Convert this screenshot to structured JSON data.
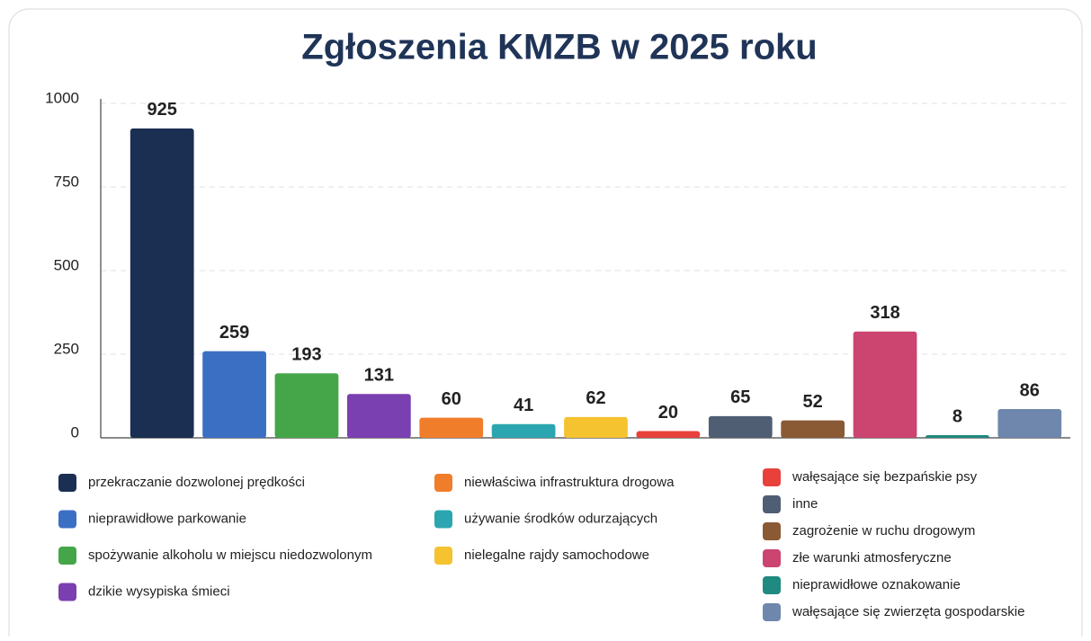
{
  "chart_data": {
    "type": "bar",
    "title": "Zgłoszenia KMZB w 2025 roku",
    "categories": [
      "przekraczanie dozwolonej prędkości",
      "nieprawidłowe parkowanie",
      "spożywanie alkoholu w miejscu niedozwolonym",
      "dzikie wysypiska śmieci",
      "niewłaściwa infrastruktura drogowa",
      "używanie środków odurzających",
      "nielegalne rajdy samochodowe",
      "wałęsające się bezpańskie psy",
      "inne",
      "zagrożenie w ruchu drogowym",
      "złe warunki atmosferyczne",
      "nieprawidłowe oznakowanie",
      "wałęsające się zwierzęta gospodarskie"
    ],
    "values": [
      925,
      259,
      193,
      131,
      60,
      41,
      62,
      20,
      65,
      52,
      318,
      8,
      86
    ],
    "colors": [
      "#1b2f52",
      "#3a6fc4",
      "#44a648",
      "#7a3fb0",
      "#f07d2a",
      "#2ba6b0",
      "#f5c230",
      "#e8413c",
      "#4f5e73",
      "#8a5a35",
      "#cc4470",
      "#1f8a7f",
      "#6f87ad"
    ],
    "ylim": [
      0,
      1000
    ],
    "yticks": [
      0,
      250,
      500,
      750,
      1000
    ],
    "grid": true
  }
}
